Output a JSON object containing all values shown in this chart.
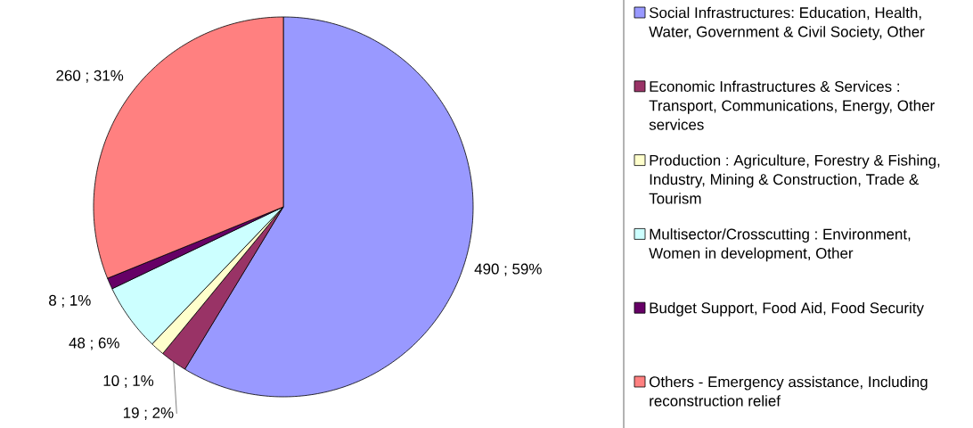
{
  "chart_data": {
    "type": "pie",
    "categories": [
      "Social Infrastructures: Education, Health, Water, Government & Civil Society, Other",
      "Economic Infrastructures & Services : Transport, Communications, Energy, Other services",
      "Production : Agriculture, Forestry & Fishing, Industry, Mining & Construction, Trade & Tourism",
      "Multisector/Crosscutting : Environment, Women in development, Other",
      "Budget Support, Food Aid, Food Security",
      "Others - Emergency assistance, Including reconstruction relief"
    ],
    "values": [
      490,
      19,
      10,
      48,
      8,
      260
    ],
    "value_labels": [
      "490 ; 59%",
      "19 ; 2%",
      "10 ; 1%",
      "48 ; 6%",
      "8 ; 1%",
      "260 ; 31%"
    ],
    "colors": [
      "#9999ff",
      "#993366",
      "#ffffcc",
      "#ccffff",
      "#660066",
      "#ff8080"
    ],
    "legend": "right"
  }
}
